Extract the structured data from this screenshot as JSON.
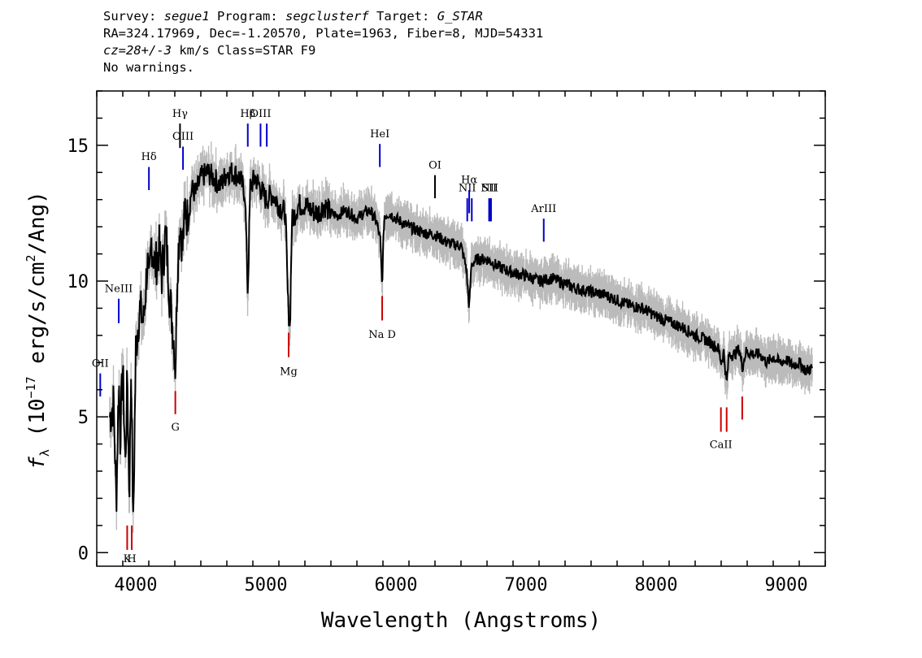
{
  "header": {
    "survey_label": "Survey:",
    "survey": "segue1",
    "program_label": "Program:",
    "program": "segclusterf",
    "target_label": "Target:",
    "target": "G_STAR",
    "coords": "RA=324.17969, Dec=-1.20570, Plate=1963, Fiber=8, MJD=54331",
    "cz": "cz=28+/-3",
    "cz_rest": "km/s Class=STAR F9",
    "warnings": "No warnings."
  },
  "chart_data": {
    "type": "line",
    "title": "",
    "xlabel": "Wavelength (Angstroms)",
    "ylabel_prefix": "f",
    "ylabel_sub": "λ",
    "ylabel_mid": " (10",
    "ylabel_exp": "−17",
    "ylabel_rest": " erg/s/cm",
    "ylabel_exp2": "2",
    "ylabel_end": "/Ang)",
    "xlim": [
      3700,
      9300
    ],
    "ylim": [
      -0.5,
      17
    ],
    "xticks": [
      4000,
      5000,
      6000,
      7000,
      8000,
      9000
    ],
    "xtick_labels": [
      "4000",
      "5000",
      "6000",
      "7000",
      "8000",
      "9000"
    ],
    "yticks": [
      0,
      5,
      10,
      15
    ],
    "ytick_labels": [
      "0",
      "5",
      "10",
      "15"
    ],
    "series": [
      {
        "color": "#000000",
        "x": [
          3800,
          3830,
          3850,
          3870,
          3880,
          3900,
          3920,
          3935,
          3950,
          3965,
          3980,
          4000,
          4030,
          4060,
          4090,
          4101,
          4120,
          4150,
          4180,
          4200,
          4230,
          4260,
          4290,
          4305,
          4320,
          4340,
          4360,
          4380,
          4400,
          4430,
          4460,
          4500,
          4550,
          4600,
          4650,
          4700,
          4750,
          4800,
          4840,
          4861,
          4880,
          4920,
          4960,
          5000,
          5050,
          5100,
          5150,
          5170,
          5185,
          5200,
          5250,
          5300,
          5350,
          5400,
          5450,
          5500,
          5550,
          5600,
          5650,
          5700,
          5750,
          5800,
          5850,
          5880,
          5893,
          5910,
          5950,
          6000,
          6100,
          6200,
          6300,
          6400,
          6500,
          6540,
          6563,
          6580,
          6620,
          6700,
          6800,
          6900,
          7000,
          7100,
          7200,
          7300,
          7400,
          7500,
          7600,
          7700,
          7800,
          7900,
          8000,
          8100,
          8200,
          8300,
          8400,
          8480,
          8500,
          8520,
          8542,
          8560,
          8600,
          8640,
          8662,
          8690,
          8750,
          8800,
          8850,
          8900,
          8950,
          9000,
          9050,
          9100,
          9150,
          9200
        ],
        "y": [
          5.0,
          5.5,
          1.8,
          6.5,
          4.2,
          6.8,
          3.2,
          6.5,
          2.0,
          7.0,
          0.8,
          7.5,
          9.0,
          8.5,
          10.8,
          9.5,
          11.5,
          10.5,
          11.2,
          10.2,
          11.8,
          9.5,
          8.0,
          6.8,
          10.5,
          12.2,
          11.2,
          12.8,
          12.2,
          13.4,
          13.2,
          13.8,
          14.0,
          13.8,
          13.5,
          14.0,
          14.0,
          13.8,
          13.2,
          9.5,
          13.5,
          13.8,
          13.4,
          13.0,
          13.2,
          12.8,
          12.5,
          9.2,
          8.2,
          12.2,
          12.8,
          12.8,
          12.6,
          12.5,
          12.8,
          12.5,
          12.4,
          12.6,
          12.5,
          12.3,
          12.5,
          12.6,
          12.2,
          11.5,
          9.8,
          12.4,
          12.5,
          12.3,
          12.0,
          11.8,
          11.7,
          11.4,
          11.3,
          10.5,
          9.0,
          10.6,
          10.8,
          10.8,
          10.5,
          10.3,
          10.2,
          10.0,
          10.1,
          9.9,
          9.7,
          9.6,
          9.5,
          9.3,
          9.1,
          9.0,
          8.7,
          8.5,
          8.3,
          8.0,
          7.8,
          7.5,
          7.0,
          7.4,
          6.2,
          7.3,
          7.3,
          7.5,
          6.8,
          7.4,
          7.3,
          7.3,
          7.0,
          7.2,
          7.0,
          7.1,
          6.9,
          7.0,
          6.7,
          6.8
        ]
      }
    ],
    "emission_lines": [
      {
        "label": "OII",
        "x": 3727,
        "y_bottom": 5.75,
        "y_top": 6.6,
        "label_y": 6.85,
        "color": "#0000cc"
      },
      {
        "label": "NeIII",
        "x": 3869,
        "y_bottom": 8.45,
        "y_top": 9.35,
        "label_y": 9.6,
        "color": "#0000cc"
      },
      {
        "label": "Hδ",
        "x": 4101,
        "y_bottom": 13.35,
        "y_top": 14.2,
        "label_y": 14.45,
        "color": "#0000cc"
      },
      {
        "label": "Hγ",
        "x": 4340,
        "y_bottom": 14.9,
        "y_top": 15.8,
        "label_y": 16.05,
        "color": "#000000"
      },
      {
        "label": "OIII",
        "x": 4363,
        "y_bottom": 14.1,
        "y_top": 14.95,
        "label_y": 15.2,
        "color": "#0000cc"
      },
      {
        "label": "Hβ",
        "x": 4861,
        "y_bottom": 14.95,
        "y_top": 15.8,
        "label_y": 16.05,
        "color": "#0000cc"
      },
      {
        "label": "OIII",
        "x": 4959,
        "y_bottom": 14.95,
        "y_top": 15.8,
        "label_y": 16.05,
        "color": "#0000cc"
      },
      {
        "label": "",
        "x": 5007,
        "y_bottom": 14.95,
        "y_top": 15.8,
        "label_y": 0,
        "color": "#0000cc"
      },
      {
        "label": "HeI",
        "x": 5876,
        "y_bottom": 14.2,
        "y_top": 15.05,
        "label_y": 15.3,
        "color": "#0000cc"
      },
      {
        "label": "OI",
        "x": 6300,
        "y_bottom": 13.05,
        "y_top": 13.9,
        "label_y": 14.15,
        "color": "#000000"
      },
      {
        "label": "NII",
        "x": 6548,
        "y_bottom": 12.2,
        "y_top": 13.05,
        "label_y": 13.3,
        "color": "#0000cc"
      },
      {
        "label": "Hα",
        "x": 6563,
        "y_bottom": 12.5,
        "y_top": 13.35,
        "label_y": 13.6,
        "color": "#0000cc"
      },
      {
        "label": "",
        "x": 6583,
        "y_bottom": 12.2,
        "y_top": 13.05,
        "label_y": 0,
        "color": "#0000cc"
      },
      {
        "label": "SII",
        "x": 6716,
        "y_bottom": 12.2,
        "y_top": 13.05,
        "label_y": 13.3,
        "color": "#0000cc"
      },
      {
        "label": "NII",
        "x": 6720,
        "y_bottom": 12.2,
        "y_top": 13.05,
        "label_y": 13.3,
        "color": "#0000cc"
      },
      {
        "label": "",
        "x": 6731,
        "y_bottom": 12.2,
        "y_top": 13.05,
        "label_y": 0,
        "color": "#0000cc"
      },
      {
        "label": "ArIII",
        "x": 7136,
        "y_bottom": 11.45,
        "y_top": 12.3,
        "label_y": 12.55,
        "color": "#0000cc"
      }
    ],
    "absorption_lines": [
      {
        "label": "K",
        "x": 3934,
        "y_top": 1.0,
        "y_bottom": 0.1,
        "label_y": -0.35,
        "color": "#cc0000"
      },
      {
        "label": "H",
        "x": 3969,
        "y_top": 1.0,
        "y_bottom": 0.1,
        "label_y": -0.35,
        "color": "#cc0000"
      },
      {
        "label": "G",
        "x": 4304,
        "y_top": 5.95,
        "y_bottom": 5.1,
        "label_y": 4.5,
        "color": "#cc0000"
      },
      {
        "label": "Mg",
        "x": 5175,
        "y_top": 8.1,
        "y_bottom": 7.2,
        "label_y": 6.55,
        "color": "#cc0000"
      },
      {
        "label": "Na D",
        "x": 5894,
        "y_top": 9.45,
        "y_bottom": 8.55,
        "label_y": 7.9,
        "color": "#cc0000"
      },
      {
        "label": "CaII",
        "x": 8498,
        "y_top": 5.35,
        "y_bottom": 4.45,
        "label_y": 3.85,
        "color": "#cc0000"
      },
      {
        "label": "",
        "x": 8542,
        "y_top": 5.35,
        "y_bottom": 4.45,
        "label_y": 0,
        "color": "#cc0000"
      },
      {
        "label": "",
        "x": 8662,
        "y_top": 5.75,
        "y_bottom": 4.9,
        "label_y": 0,
        "color": "#cc0000"
      }
    ],
    "colors": {
      "spectrum": "#000000",
      "noise": "#bbbbbb",
      "emission": "#0000cc",
      "absorption": "#cc0000"
    },
    "grid": false,
    "legend": "none"
  }
}
